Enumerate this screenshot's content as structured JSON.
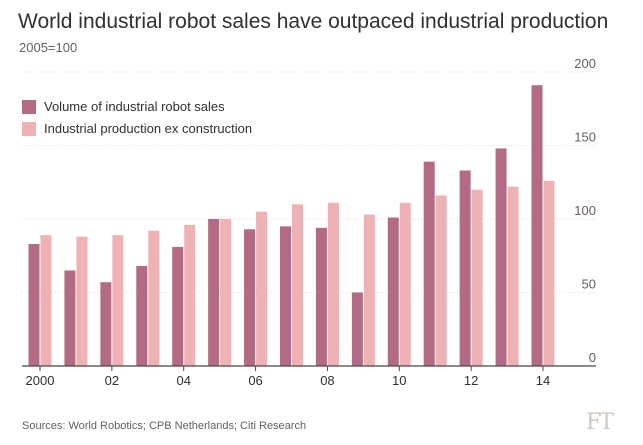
{
  "chart_data": {
    "type": "bar",
    "title": "World industrial robot sales have outpaced industrial production",
    "subtitle": "2005=100",
    "categories": [
      2000,
      2001,
      2002,
      2003,
      2004,
      2005,
      2006,
      2007,
      2008,
      2009,
      2010,
      2011,
      2012,
      2013,
      2014
    ],
    "x_tick_labels": [
      {
        "year": 2000,
        "label": "2000"
      },
      {
        "year": 2002,
        "label": "02"
      },
      {
        "year": 2004,
        "label": "04"
      },
      {
        "year": 2006,
        "label": "06"
      },
      {
        "year": 2008,
        "label": "08"
      },
      {
        "year": 2010,
        "label": "10"
      },
      {
        "year": 2012,
        "label": "12"
      },
      {
        "year": 2014,
        "label": "14"
      }
    ],
    "series": [
      {
        "name": "Volume of industrial robot sales",
        "color": "#b36a84",
        "values": [
          83,
          65,
          57,
          68,
          81,
          100,
          93,
          95,
          94,
          50,
          101,
          139,
          133,
          148,
          191
        ]
      },
      {
        "name": "Industrial production ex construction",
        "color": "#efb2b4",
        "values": [
          89,
          88,
          89,
          92,
          96,
          100,
          105,
          110,
          111,
          103,
          111,
          116,
          120,
          122,
          126
        ]
      }
    ],
    "ylim": [
      0,
      200
    ],
    "y_ticks": [
      0,
      50,
      100,
      150,
      200
    ],
    "y_axis_side": "right",
    "grid": true,
    "legend_position": "top-left"
  },
  "source": "Sources: World Robotics; CPB Netherlands; Citi Research",
  "logo": "FT"
}
